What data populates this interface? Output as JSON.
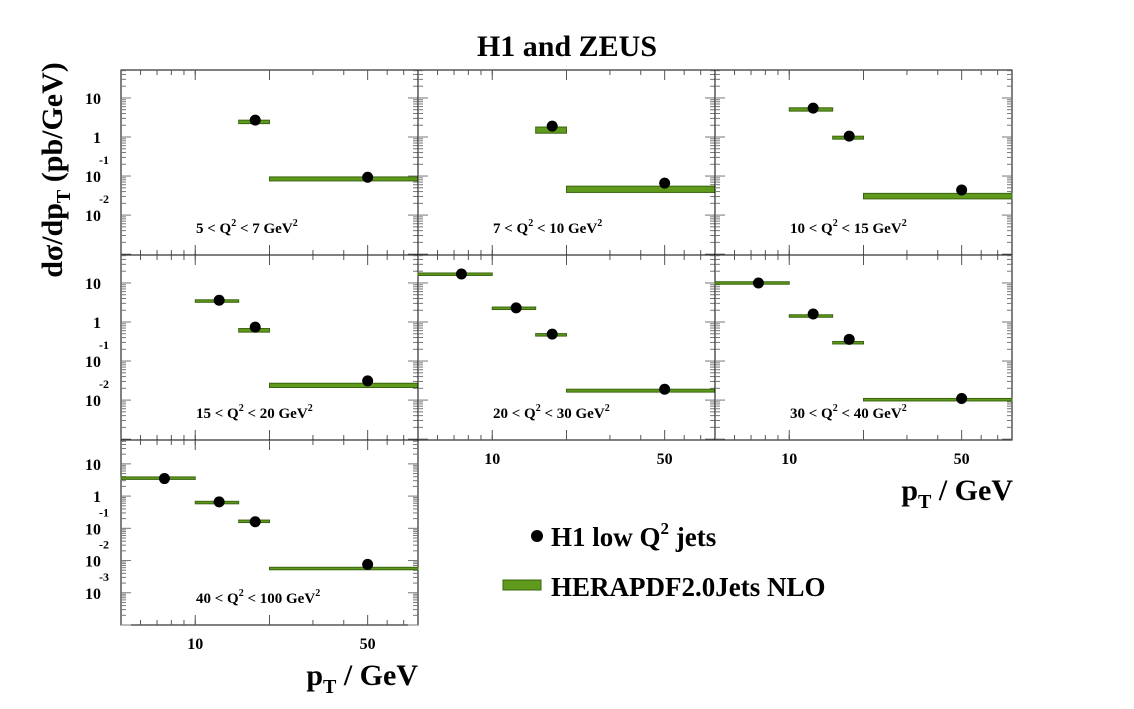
{
  "chart_data": {
    "type": "scatter",
    "title": "H1 and ZEUS",
    "ylabel": {
      "main": "dσ/dp",
      "sub": "T",
      "unit": " (pb/GeV)"
    },
    "xlabel": {
      "main": "p",
      "sub": "T",
      "unit": " / GeV"
    },
    "xscale": "log",
    "xlim": [
      5,
      80
    ],
    "x_ticks": [
      {
        "value": 10,
        "label": "10"
      },
      {
        "value": 50,
        "label": "50"
      }
    ],
    "legend": {
      "placement": "bottom-right",
      "data_label": {
        "main": "H1 low Q",
        "sup": "2",
        "rest": " jets"
      },
      "theory_label": "HERAPDF2.0Jets NLO"
    },
    "colors": {
      "band": "#5f9a1c",
      "band_edge": "#3a6410",
      "point": "#000000"
    },
    "panels": [
      {
        "label": {
          "pre": "5 < Q",
          "mid": " < 7 GeV"
        },
        "ylim": [
          0.00095,
          52
        ],
        "bins": [
          [
            15,
            20
          ],
          [
            20,
            80
          ]
        ],
        "x": [
          17.5,
          50
        ],
        "data": [
          2.7,
          0.093
        ],
        "theory": [
          [
            2.2,
            2.7
          ],
          [
            0.075,
            0.095
          ]
        ]
      },
      {
        "label": {
          "pre": "7 < Q",
          "mid": " < 10 GeV"
        },
        "ylim": [
          0.00095,
          52
        ],
        "bins": [
          [
            15,
            20
          ],
          [
            20,
            80
          ]
        ],
        "x": [
          17.5,
          50
        ],
        "data": [
          1.9,
          0.066
        ],
        "theory": [
          [
            1.25,
            1.8
          ],
          [
            0.038,
            0.055
          ]
        ]
      },
      {
        "label": {
          "pre": "10 < Q",
          "mid": " < 15 GeV"
        },
        "ylim": [
          0.00095,
          52
        ],
        "bins": [
          [
            10,
            15
          ],
          [
            15,
            20
          ],
          [
            20,
            80
          ]
        ],
        "x": [
          12.5,
          17.5,
          50
        ],
        "data": [
          5.5,
          1.05,
          0.044
        ],
        "theory": [
          [
            4.6,
            5.6
          ],
          [
            0.88,
            1.05
          ],
          [
            0.026,
            0.036
          ]
        ]
      },
      {
        "label": {
          "pre": "15 < Q",
          "mid": " < 20 GeV"
        },
        "ylim": [
          0.00095,
          52
        ],
        "bins": [
          [
            10,
            15
          ],
          [
            15,
            20
          ],
          [
            20,
            80
          ]
        ],
        "x": [
          12.5,
          17.5,
          50
        ],
        "data": [
          3.6,
          0.74,
          0.031
        ],
        "theory": [
          [
            3.2,
            3.7
          ],
          [
            0.55,
            0.68
          ],
          [
            0.021,
            0.027
          ]
        ]
      },
      {
        "label": {
          "pre": "20 < Q",
          "mid": " < 30 GeV"
        },
        "ylim": [
          0.00095,
          52
        ],
        "bins": [
          [
            5,
            10
          ],
          [
            10,
            15
          ],
          [
            15,
            20
          ],
          [
            20,
            80
          ]
        ],
        "x": [
          7.5,
          12.5,
          17.5,
          50
        ],
        "data": [
          17,
          2.3,
          0.49,
          0.019
        ],
        "theory": [
          [
            16,
            17.5
          ],
          [
            2.1,
            2.4
          ],
          [
            0.44,
            0.5
          ],
          [
            0.016,
            0.019
          ]
        ]
      },
      {
        "label": {
          "pre": "30 < Q",
          "mid": " < 40 GeV"
        },
        "ylim": [
          0.00095,
          52
        ],
        "bins": [
          [
            5,
            10
          ],
          [
            10,
            15
          ],
          [
            15,
            20
          ],
          [
            20,
            80
          ]
        ],
        "x": [
          7.5,
          12.5,
          17.5,
          50
        ],
        "data": [
          10,
          1.6,
          0.36,
          0.011
        ],
        "theory": [
          [
            9.5,
            10.5
          ],
          [
            1.35,
            1.5
          ],
          [
            0.28,
            0.31
          ],
          [
            0.0095,
            0.011
          ]
        ]
      },
      {
        "label": {
          "pre": "40 < Q",
          "mid": " < 100 GeV"
        },
        "ylim": [
          0.0001,
          55
        ],
        "bins": [
          [
            5,
            10
          ],
          [
            10,
            15
          ],
          [
            15,
            20
          ],
          [
            20,
            80
          ]
        ],
        "x": [
          7.5,
          12.5,
          17.5,
          50
        ],
        "data": [
          3.5,
          0.66,
          0.16,
          0.0076
        ],
        "theory": [
          [
            3.5,
            3.7
          ],
          [
            0.6,
            0.66
          ],
          [
            0.16,
            0.17
          ],
          [
            0.0055,
            0.0058
          ]
        ]
      }
    ],
    "y_ticks_rows": [
      [
        {
          "value": 10,
          "base": "10",
          "exp": ""
        },
        {
          "value": 1,
          "base": "1",
          "exp": ""
        },
        {
          "value": 0.1,
          "base": "10",
          "exp": "-1"
        },
        {
          "value": 0.01,
          "base": "10",
          "exp": "-2"
        }
      ],
      [
        {
          "value": 10,
          "base": "10",
          "exp": ""
        },
        {
          "value": 1,
          "base": "1",
          "exp": ""
        },
        {
          "value": 0.1,
          "base": "10",
          "exp": "-1"
        },
        {
          "value": 0.01,
          "base": "10",
          "exp": "-2"
        }
      ],
      [
        {
          "value": 10,
          "base": "10",
          "exp": ""
        },
        {
          "value": 1,
          "base": "1",
          "exp": ""
        },
        {
          "value": 0.1,
          "base": "10",
          "exp": "-1"
        },
        {
          "value": 0.01,
          "base": "10",
          "exp": "-2"
        },
        {
          "value": 0.001,
          "base": "10",
          "exp": "-3"
        }
      ]
    ]
  }
}
